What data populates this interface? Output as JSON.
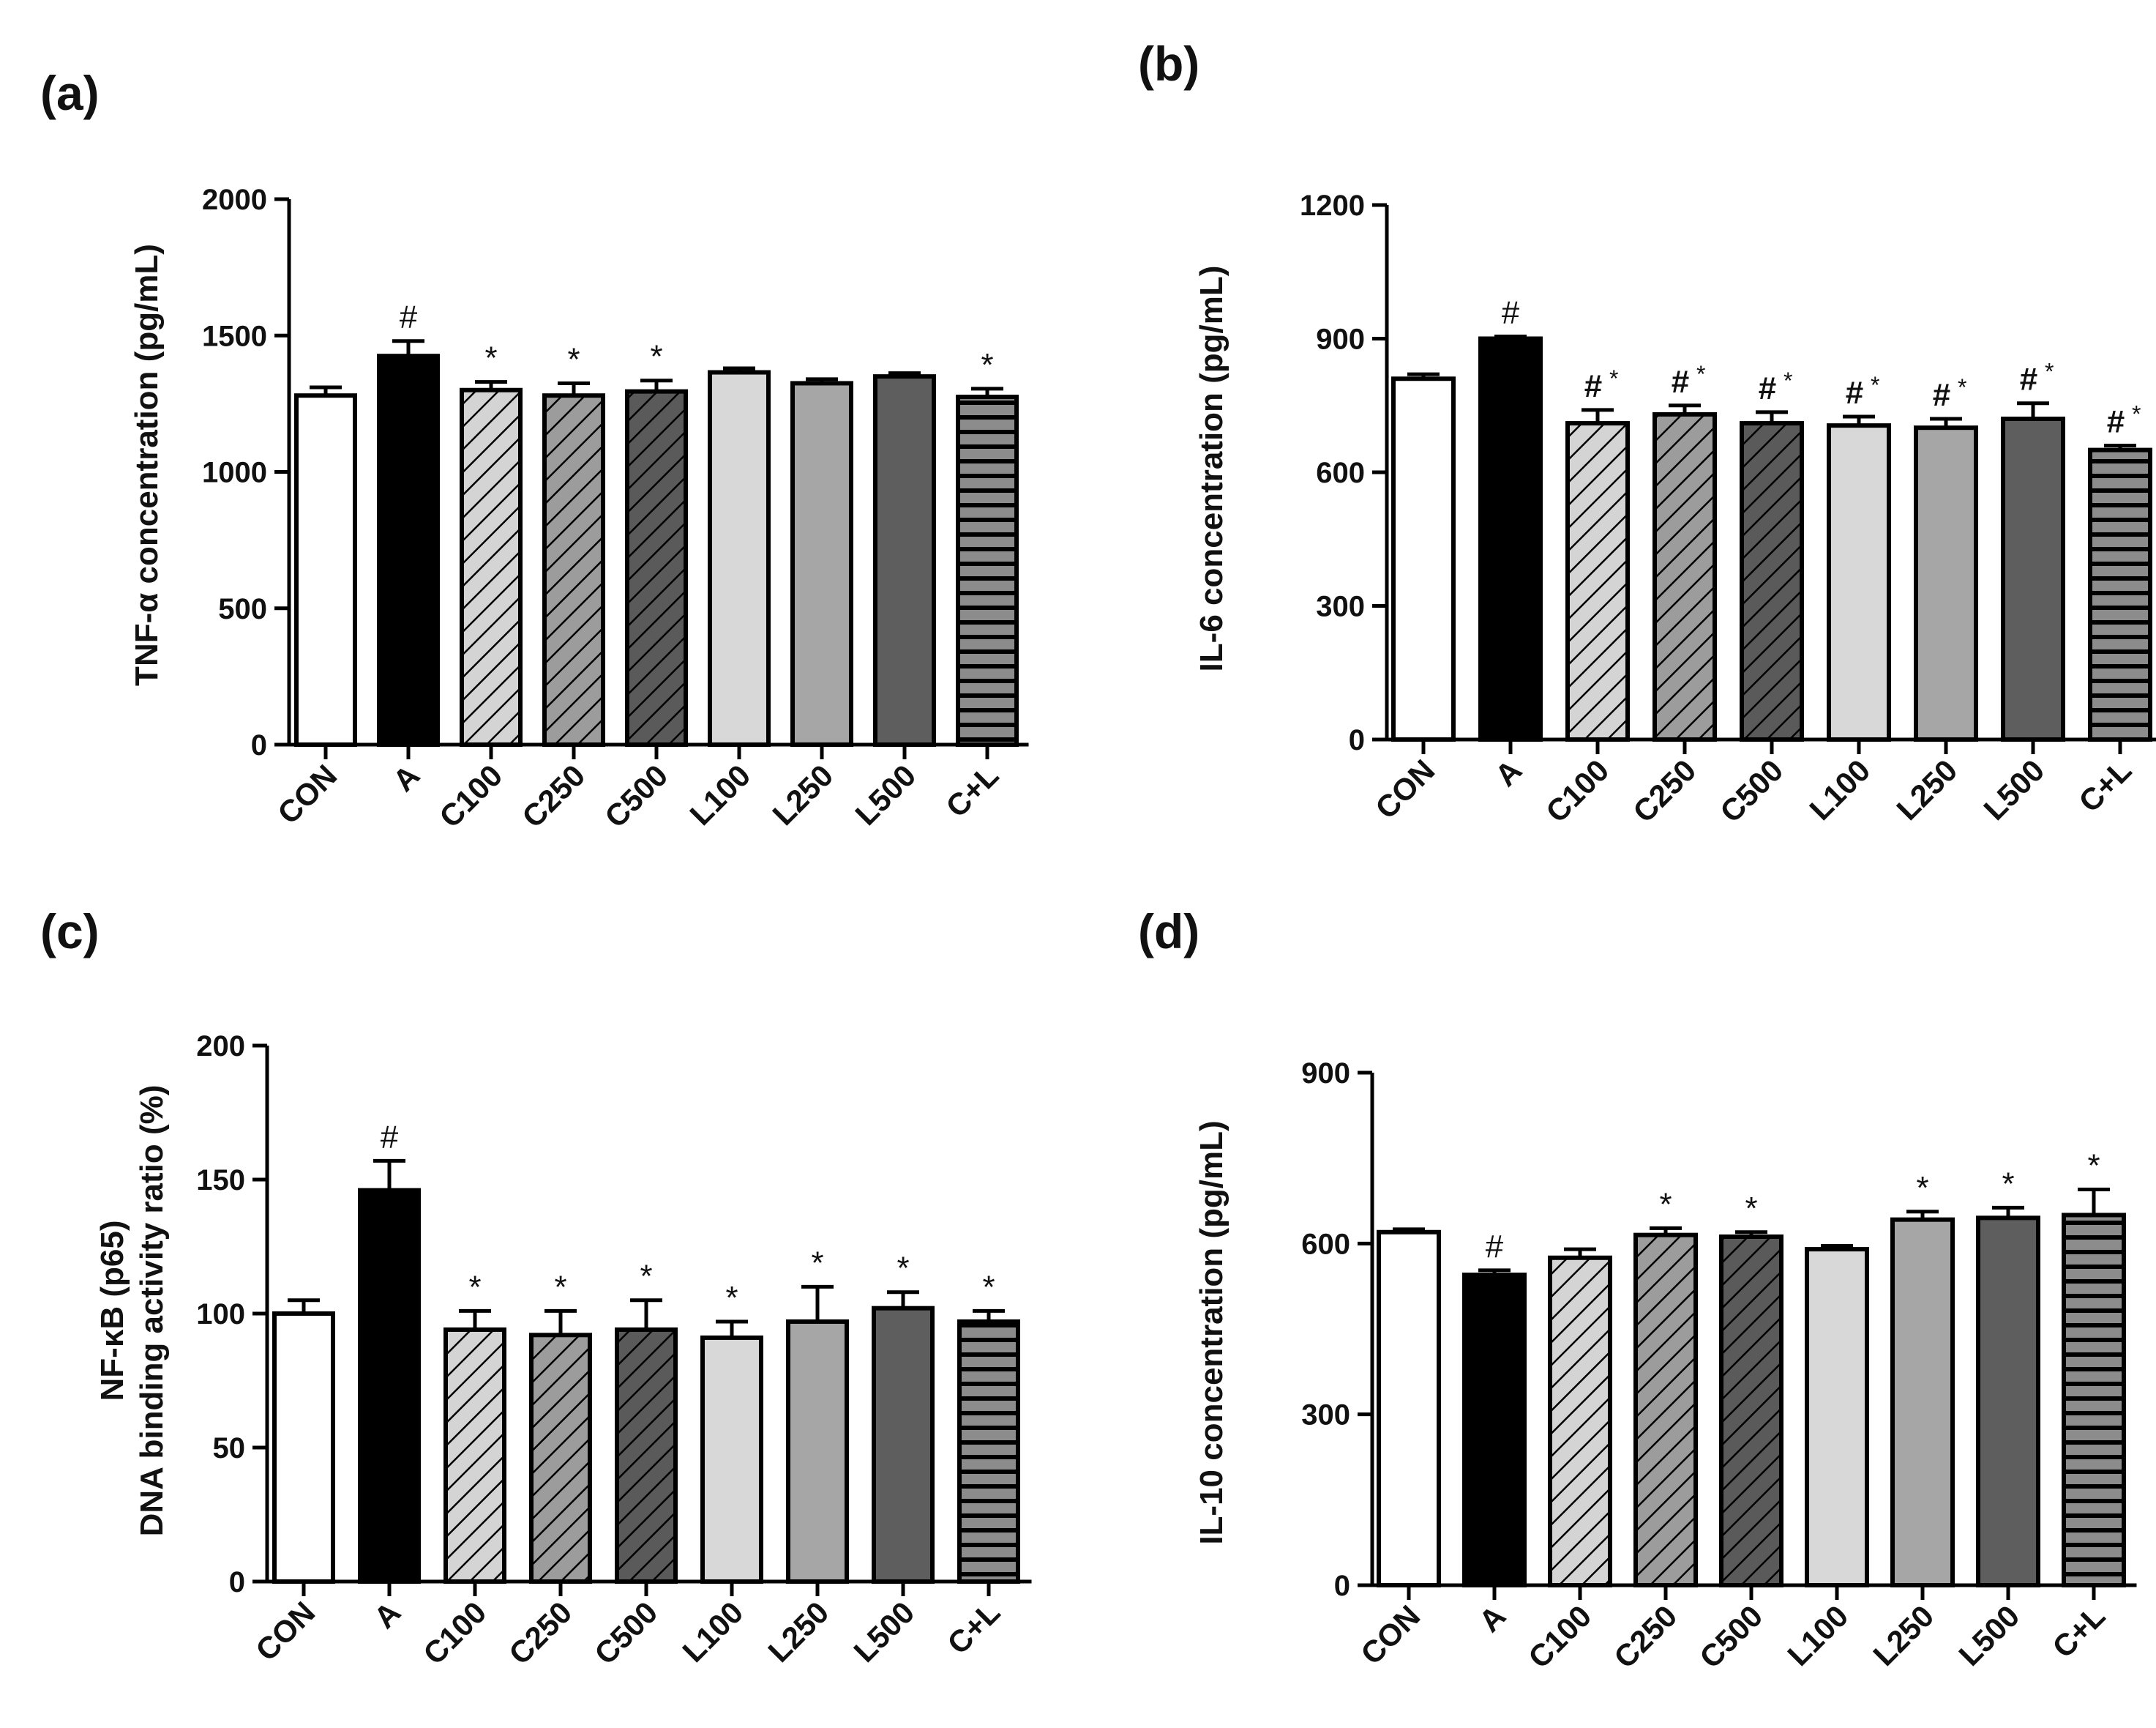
{
  "colors": {
    "CON": "#ffffff",
    "A": "#000000",
    "C100": "#d4d4d4",
    "C250": "#9c9c9c",
    "C500": "#5a5a5a",
    "L100": "#d8d8d8",
    "L250": "#a6a6a6",
    "L500": "#5e5e5e",
    "C+L": "#8c8c8c"
  },
  "chart_data": [
    {
      "panel": "(a)",
      "type": "bar",
      "title": "",
      "xlabel": "",
      "ylabel": "TNF-α concentration (pg/mL)",
      "ylabel_lines": [
        "TNF-α concentration (pg/mL)"
      ],
      "ylim": [
        0,
        2000
      ],
      "yticks": [
        0,
        500,
        1000,
        1500,
        2000
      ],
      "categories": [
        "CON",
        "A",
        "C100",
        "C250",
        "C500",
        "L100",
        "L250",
        "L500",
        "C+L"
      ],
      "values": [
        1280,
        1425,
        1300,
        1280,
        1295,
        1365,
        1325,
        1350,
        1275
      ],
      "errors": [
        30,
        55,
        30,
        45,
        40,
        15,
        15,
        12,
        30
      ],
      "annotations": [
        "",
        "#",
        "*",
        "*",
        "*",
        "",
        "",
        "",
        "*"
      ]
    },
    {
      "panel": "(b)",
      "type": "bar",
      "title": "",
      "xlabel": "",
      "ylabel": "IL-6 concentration (pg/mL)",
      "ylabel_lines": [
        "IL-6 concentration (pg/mL)"
      ],
      "ylim": [
        0,
        1200
      ],
      "yticks": [
        0,
        300,
        600,
        900,
        1200
      ],
      "categories": [
        "CON",
        "A",
        "C100",
        "C250",
        "C500",
        "L100",
        "L250",
        "L500",
        "C+L"
      ],
      "values": [
        810,
        900,
        710,
        730,
        710,
        705,
        700,
        720,
        650
      ],
      "errors": [
        10,
        5,
        30,
        20,
        25,
        20,
        20,
        35,
        10
      ],
      "annotations": [
        "",
        "#",
        "#*",
        "#*",
        "#*",
        "#*",
        "#*",
        "#*",
        "#*"
      ]
    },
    {
      "panel": "(c)",
      "type": "bar",
      "title": "",
      "xlabel": "",
      "ylabel": "NF-κB (p65) DNA binding activity ratio (%)",
      "ylabel_lines": [
        "NF-κB (p65)",
        "DNA binding activity ratio (%)"
      ],
      "ylim": [
        0,
        200
      ],
      "yticks": [
        0,
        50,
        100,
        150,
        200
      ],
      "categories": [
        "CON",
        "A",
        "C100",
        "C250",
        "C500",
        "L100",
        "L250",
        "L500",
        "C+L"
      ],
      "values": [
        100,
        146,
        94,
        92,
        94,
        91,
        97,
        102,
        97
      ],
      "errors": [
        5,
        11,
        7,
        9,
        11,
        6,
        13,
        6,
        4
      ],
      "annotations": [
        "",
        "#",
        "*",
        "*",
        "*",
        "*",
        "*",
        "*",
        "*"
      ]
    },
    {
      "panel": "(d)",
      "type": "bar",
      "title": "",
      "xlabel": "",
      "ylabel": "IL-10 concentration (pg/mL)",
      "ylabel_lines": [
        "IL-10 concentration (pg/mL)"
      ],
      "ylim": [
        0,
        900
      ],
      "yticks": [
        0,
        300,
        600,
        900
      ],
      "categories": [
        "CON",
        "A",
        "C100",
        "C250",
        "C500",
        "L100",
        "L250",
        "L500",
        "C+L"
      ],
      "values": [
        620,
        545,
        575,
        615,
        612,
        590,
        642,
        645,
        650
      ],
      "errors": [
        5,
        8,
        15,
        12,
        8,
        6,
        14,
        18,
        45
      ],
      "annotations": [
        "",
        "#",
        "",
        "*",
        "*",
        "",
        "*",
        "*",
        "*"
      ]
    }
  ]
}
